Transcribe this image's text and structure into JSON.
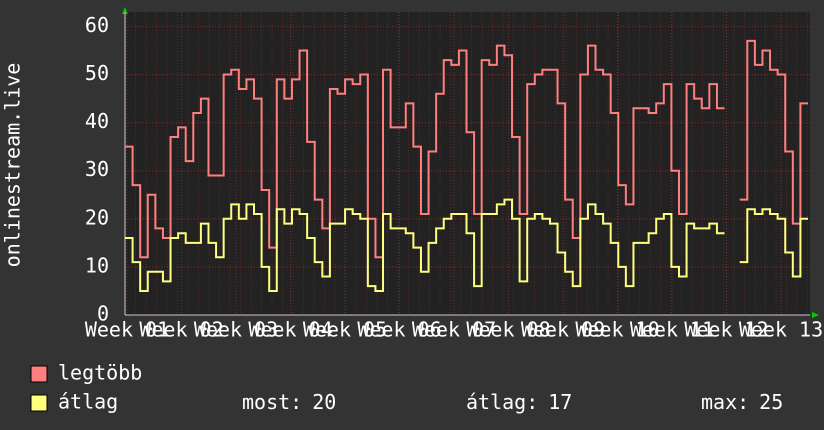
{
  "chart_data": {
    "type": "step-line",
    "y_label": "onlinestream.live",
    "x_labels": [
      "Week 01",
      "Week 02",
      "Week 03",
      "Week 04",
      "Week 05",
      "Week 06",
      "Week 07",
      "Week 08",
      "Week 09",
      "Week 10",
      "Week 11",
      "Week 12",
      "Week 13"
    ],
    "ylim": [
      0,
      63
    ],
    "yticks": [
      0,
      10,
      20,
      30,
      40,
      50,
      60
    ],
    "grid": true,
    "series": [
      {
        "name": "legtöbb",
        "color": "#ff7f7f",
        "values": [
          35,
          27,
          12,
          25,
          18,
          16,
          37,
          39,
          32,
          42,
          45,
          29,
          29,
          50,
          51,
          47,
          49,
          45,
          26,
          14,
          49,
          45,
          49,
          55,
          36,
          24,
          18,
          47,
          46,
          49,
          48,
          50,
          20,
          12,
          51,
          39,
          39,
          44,
          35,
          21,
          34,
          46,
          53,
          52,
          55,
          38,
          21,
          53,
          52,
          56,
          54,
          37,
          21,
          48,
          50,
          51,
          51,
          44,
          24,
          16,
          50,
          56,
          51,
          50,
          42,
          27,
          23,
          43,
          43,
          42,
          44,
          48,
          30,
          21,
          48,
          45,
          43,
          48,
          43,
          null,
          null,
          24,
          57,
          52,
          55,
          51,
          50,
          34,
          19,
          44
        ]
      },
      {
        "name": "átlag",
        "color": "#ffff7f",
        "values": [
          16,
          11,
          5,
          9,
          9,
          7,
          16,
          17,
          15,
          15,
          19,
          15,
          12,
          20,
          23,
          20,
          23,
          21,
          10,
          5,
          22,
          19,
          22,
          21,
          16,
          11,
          8,
          19,
          19,
          22,
          21,
          20,
          6,
          5,
          21,
          18,
          18,
          17,
          14,
          9,
          15,
          18,
          20,
          21,
          21,
          17,
          6,
          21,
          21,
          23,
          24,
          20,
          7,
          20,
          21,
          20,
          19,
          13,
          9,
          6,
          20,
          23,
          21,
          19,
          15,
          10,
          6,
          15,
          15,
          17,
          20,
          21,
          10,
          8,
          19,
          18,
          18,
          19,
          17,
          null,
          null,
          11,
          22,
          21,
          22,
          21,
          20,
          13,
          8,
          20
        ]
      }
    ],
    "legend_stats": [
      {
        "label": "most:",
        "value": 20
      },
      {
        "label": "átlag:",
        "value": 17
      },
      {
        "label": "max:",
        "value": 25
      }
    ]
  }
}
